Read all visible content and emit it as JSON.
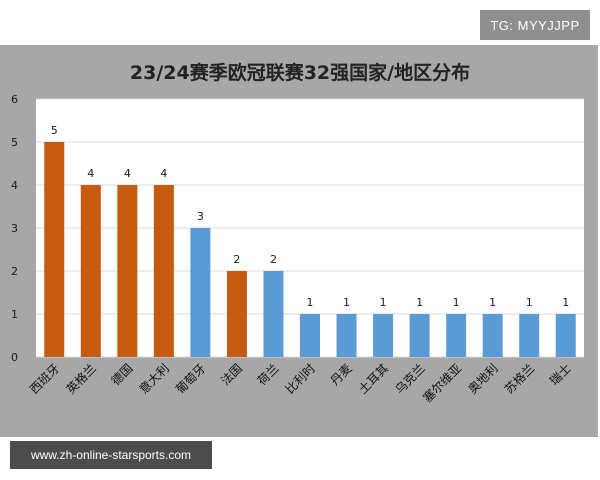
{
  "badge": {
    "text": "TG: MYYJJPP"
  },
  "footer": {
    "url_text": "www.zh-online-starsports.com"
  },
  "colors": {
    "orange": "#c55a11",
    "blue": "#5b9bd5",
    "panel": "#a7a7a7",
    "plot": "#ffffff",
    "grid": "#d9d9d9"
  },
  "chart_data": {
    "type": "bar",
    "title": "23/24赛季欧冠联赛32强国家/地区分布",
    "xlabel": "",
    "ylabel": "",
    "ylim": [
      0,
      6
    ],
    "yticks": [
      0,
      1,
      2,
      3,
      4,
      5,
      6
    ],
    "grid": true,
    "categories": [
      "西班牙",
      "英格兰",
      "德国",
      "意大利",
      "葡萄牙",
      "法国",
      "荷兰",
      "比利时",
      "丹麦",
      "土耳其",
      "乌克兰",
      "塞尔维亚",
      "奥地利",
      "苏格兰",
      "瑞士"
    ],
    "values": [
      5,
      4,
      4,
      4,
      3,
      2,
      2,
      1,
      1,
      1,
      1,
      1,
      1,
      1,
      1
    ],
    "bar_colors": [
      "orange",
      "orange",
      "orange",
      "orange",
      "blue",
      "orange",
      "blue",
      "blue",
      "blue",
      "blue",
      "blue",
      "blue",
      "blue",
      "blue",
      "blue"
    ]
  }
}
